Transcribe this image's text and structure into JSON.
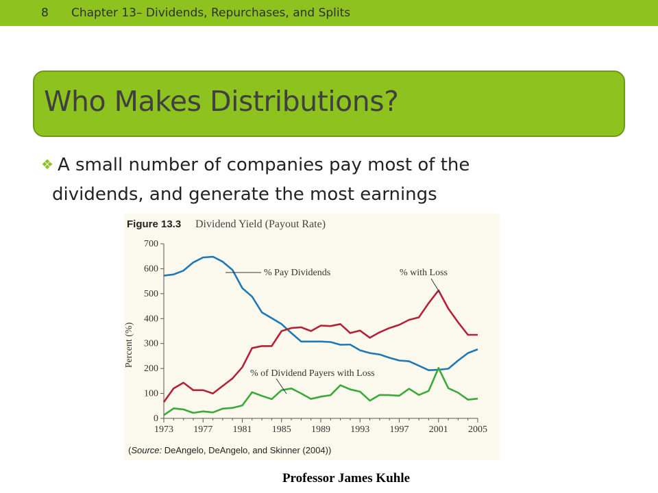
{
  "header": {
    "slide_number": "8",
    "chapter": "Chapter 13– Dividends, Repurchases, and Splits"
  },
  "title": "Who Makes Distributions?",
  "bullet": {
    "line1": "A small number of companies pay most of the",
    "line2": "dividends, and generate the most earnings"
  },
  "figure": {
    "label": "Figure 13.3",
    "caption": "Dividend Yield (Payout Rate)",
    "source_prefix": "(",
    "source_italic": "Source:",
    "source_rest": " DeAngelo, DeAngelo, and Skinner (2004))"
  },
  "footer": "Professor James Kuhle",
  "colors": {
    "accent": "#8dc21f",
    "pay": "#1f77b4",
    "loss": "#b22234",
    "payers_loss": "#3aaa35"
  },
  "chart_data": {
    "type": "line",
    "ylabel": "Percent (%)",
    "xlabel": "",
    "ylim": [
      0,
      700
    ],
    "yticks": [
      0,
      100,
      200,
      300,
      400,
      500,
      600,
      700
    ],
    "xlim": [
      1973,
      2005
    ],
    "xticks": [
      1973,
      1977,
      1981,
      1985,
      1989,
      1993,
      1997,
      2001,
      2005
    ],
    "grid": false,
    "x": [
      1973,
      1974,
      1975,
      1976,
      1977,
      1978,
      1979,
      1980,
      1981,
      1982,
      1983,
      1984,
      1985,
      1986,
      1987,
      1988,
      1989,
      1990,
      1991,
      1992,
      1993,
      1994,
      1995,
      1996,
      1997,
      1998,
      1999,
      2000,
      2001,
      2002,
      2003,
      2004,
      2005
    ],
    "series": [
      {
        "name": "% Pay Dividends",
        "color": "#1f77b4",
        "values": [
          572,
          577,
          592,
          625,
          645,
          648,
          628,
          595,
          522,
          488,
          425,
          402,
          378,
          342,
          308,
          308,
          308,
          306,
          295,
          296,
          273,
          262,
          256,
          243,
          232,
          229,
          211,
          193,
          195,
          199,
          232,
          262,
          277
        ]
      },
      {
        "name": "% with Loss",
        "color": "#b22234",
        "values": [
          65,
          120,
          143,
          113,
          113,
          100,
          130,
          160,
          205,
          282,
          290,
          290,
          350,
          362,
          365,
          350,
          372,
          370,
          378,
          342,
          352,
          323,
          345,
          362,
          375,
          395,
          405,
          462,
          513,
          440,
          385,
          335,
          335
        ]
      },
      {
        "name": "% of Dividend Payers with Loss",
        "color": "#3aaa35",
        "values": [
          13,
          40,
          36,
          22,
          28,
          24,
          39,
          42,
          52,
          105,
          90,
          77,
          113,
          120,
          100,
          78,
          87,
          93,
          133,
          116,
          107,
          71,
          94,
          93,
          91,
          119,
          94,
          110,
          202,
          121,
          103,
          75,
          79
        ]
      }
    ],
    "annotations": [
      "% Pay Dividends",
      "% with Loss",
      "% of Dividend Payers with Loss"
    ]
  }
}
